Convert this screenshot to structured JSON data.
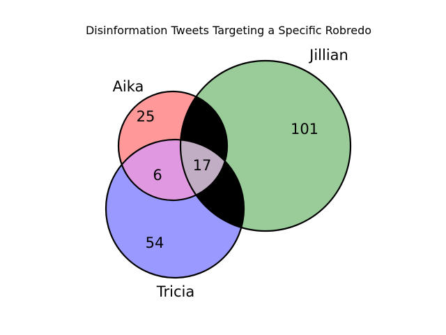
{
  "title": "Disinformation Tweets Targeting a Specific Robredo",
  "sets": [
    {
      "id": "aika",
      "label": "Aika",
      "color": "#ff9999"
    },
    {
      "id": "jillian",
      "label": "Jillian",
      "color": "#99cc99"
    },
    {
      "id": "tricia",
      "label": "Tricia",
      "color": "#9999ff"
    }
  ],
  "regions": {
    "aika_only": "25",
    "jillian_only": "101",
    "tricia_only": "54",
    "aika_tricia": "6",
    "aika_jillian_tricia": "17"
  },
  "colors": {
    "aika_tricia": "#e099e0",
    "all_three": "#c2aec4",
    "aika_jillian": "#000000",
    "jillian_tricia": "#000000",
    "outline": "#000000"
  }
}
